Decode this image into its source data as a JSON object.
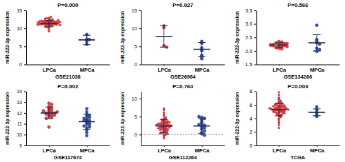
{
  "chart_data": [
    {
      "type": "scatter",
      "title": "P=0.000",
      "x_label": "GSE21036",
      "y_label": "miR-222-3p expression",
      "ylim": [
        0,
        15
      ],
      "yticks": [
        0,
        5,
        10,
        15
      ],
      "series": [
        {
          "name": "LPCa",
          "color": "#e8383d",
          "marker": "circle",
          "mean": 11.3,
          "sd": 0.9,
          "values": [
            11.2,
            11.5,
            11.8,
            12.1,
            10.9,
            11.4,
            11.7,
            12.3,
            12.6,
            11.0,
            10.6,
            11.3,
            11.9,
            12.0,
            11.6,
            11.1,
            10.8,
            12.4,
            11.5,
            11.2,
            11.8,
            12.2,
            10.4,
            11.6,
            11.3,
            11.9,
            12.8,
            11.0,
            11.4,
            11.7,
            10.2,
            12.5,
            11.5,
            11.1,
            11.8,
            12.0,
            11.3,
            10.7,
            11.6,
            12.9,
            9.8,
            11.2,
            11.9,
            12.1,
            11.4,
            11.7,
            10.9,
            13.2,
            11.5,
            11.0,
            12.3,
            11.6,
            9.2,
            11.3,
            11.8,
            12.0,
            11.1,
            10.5,
            11.4,
            12.7
          ]
        },
        {
          "name": "MPCa",
          "color": "#3a50a8",
          "marker": "circle",
          "mean": 6.8,
          "sd": 1.3,
          "values": [
            5.6,
            6.4,
            7.0,
            8.3,
            6.9
          ]
        }
      ]
    },
    {
      "type": "scatter",
      "title": "P=0.027",
      "x_label": "GSE26964",
      "y_label": "miR-222-3p expression",
      "ylim": [
        0,
        15
      ],
      "yticks": [
        0,
        5,
        10,
        15
      ],
      "series": [
        {
          "name": "LPCa",
          "color": "#e8383d",
          "marker": "circle",
          "mean": 7.8,
          "sd": 3.0,
          "values": [
            10.7,
            10.2,
            5.2,
            4.8
          ]
        },
        {
          "name": "MPCa",
          "color": "#3a50a8",
          "marker": "circle",
          "mean": 4.2,
          "sd": 1.9,
          "values": [
            6.4,
            5.9,
            4.6,
            3.8,
            2.6,
            2.1,
            1.6
          ]
        }
      ]
    },
    {
      "type": "scatter",
      "title": "P=0.566",
      "x_label": "GSE134266",
      "y_label": "miR-222-3p expression",
      "ylim": [
        1.5,
        3.5
      ],
      "yticks": [
        {
          "value": 1.5,
          "label": "1.5"
        },
        {
          "value": 2,
          "label": "2.0"
        },
        {
          "value": 2.5,
          "label": "2.5"
        },
        {
          "value": 3,
          "label": "3.0"
        },
        {
          "value": 3.5,
          "label": "3.5"
        }
      ],
      "series": [
        {
          "name": "LPCa",
          "color": "#e8383d",
          "marker": "circle",
          "mean": 2.22,
          "sd": 0.08,
          "values": [
            2.18,
            2.22,
            2.25,
            2.15,
            2.3,
            2.12,
            2.2,
            2.28,
            2.35,
            2.1,
            2.24,
            2.19,
            2.27,
            2.16,
            2.21,
            2.33,
            2.08,
            2.23
          ]
        },
        {
          "name": "MPCa",
          "color": "#3a50a8",
          "marker": "circle",
          "mean": 2.3,
          "sd": 0.3,
          "values": [
            2.95,
            2.42,
            2.3,
            2.25,
            2.1,
            2.05,
            2.35,
            1.98
          ]
        }
      ]
    },
    {
      "type": "scatter",
      "title": "P=0.002",
      "x_label": "GSE117674",
      "y_label": "miR-222-3p expression",
      "ylim": [
        9,
        14
      ],
      "yticks": [
        9,
        10,
        11,
        12,
        13,
        14
      ],
      "series": [
        {
          "name": "LPCa",
          "color": "#e8383d",
          "marker": "circle",
          "mean": 12.0,
          "sd": 0.55,
          "values": [
            12.9,
            12.6,
            12.4,
            12.3,
            12.2,
            12.1,
            12.0,
            12.0,
            11.9,
            11.8,
            11.7,
            11.6,
            12.5,
            12.2,
            11.9,
            11.5,
            10.7,
            12.8,
            12.1,
            11.8
          ]
        },
        {
          "name": "MPCa",
          "color": "#3a50a8",
          "marker": "circle",
          "mean": 11.2,
          "sd": 0.7,
          "values": [
            12.4,
            12.1,
            11.9,
            11.7,
            11.6,
            11.5,
            11.4,
            11.3,
            11.2,
            11.1,
            11.0,
            10.9,
            10.8,
            10.6,
            10.4,
            10.2,
            9.9,
            11.8,
            11.3,
            10.7
          ]
        }
      ]
    },
    {
      "type": "scatter",
      "title": "P=0.764",
      "x_label": "GSE112264",
      "y_label": "miR-222-3p expression",
      "ylim": [
        -3,
        12
      ],
      "yticks": [
        0,
        5,
        10
      ],
      "reference_line": 0,
      "series": [
        {
          "name": "LPCa",
          "color": "#e8383d",
          "marker": "circle",
          "mean": 2.4,
          "sd": 1.8,
          "values": [
            0.1,
            0.3,
            0.5,
            0.8,
            1.0,
            1.2,
            1.4,
            1.5,
            1.7,
            1.8,
            2.0,
            2.1,
            2.2,
            2.3,
            2.4,
            2.5,
            2.6,
            2.7,
            2.8,
            2.9,
            3.0,
            3.1,
            3.2,
            3.3,
            3.5,
            3.6,
            3.8,
            4.0,
            4.2,
            4.5,
            4.8,
            5.2,
            5.6,
            6.1,
            6.8,
            -0.2,
            -0.5,
            0.2,
            0.6,
            1.1,
            1.6,
            1.9,
            2.2,
            2.4,
            2.6,
            2.9,
            3.1,
            3.4,
            3.7,
            4.1,
            0.0,
            0.4,
            1.3,
            2.0,
            2.5,
            3.0,
            1.8,
            2.7,
            -1.0,
            7.2
          ]
        },
        {
          "name": "MPCa",
          "color": "#3a50a8",
          "marker": "circle",
          "mean": 2.4,
          "sd": 2.0,
          "values": [
            4.8,
            4.5,
            4.2,
            3.6,
            3.0,
            2.6,
            2.2,
            1.9,
            1.5,
            1.0,
            0.6,
            0.2,
            -0.2,
            2.8,
            5.0
          ]
        }
      ]
    },
    {
      "type": "scatter",
      "title": "P=0.003",
      "x_label": "TCGA",
      "y_label": "miR-222-3p expression",
      "ylim": [
        0,
        8
      ],
      "yticks": [
        0,
        2,
        4,
        6,
        8
      ],
      "series": [
        {
          "name": "LPCa",
          "color": "#e8383d",
          "marker": "circle",
          "mean": 5.3,
          "sd": 0.9,
          "values": [
            5.3,
            5.5,
            5.1,
            5.8,
            4.9,
            5.6,
            6.0,
            5.2,
            4.7,
            5.4,
            5.9,
            6.3,
            5.0,
            4.5,
            5.7,
            6.5,
            5.3,
            4.8,
            6.1,
            5.5,
            4.3,
            5.2,
            6.8,
            5.6,
            4.0,
            5.4,
            6.2,
            5.1,
            7.1,
            3.8,
            5.8,
            5.0,
            4.6,
            6.4,
            5.3,
            3.5,
            5.7,
            7.5,
            4.9,
            5.5,
            6.0,
            4.2,
            5.2,
            6.6,
            3.0,
            5.4,
            4.8,
            7.9,
            5.6,
            5.1,
            2.6,
            6.2,
            5.3,
            4.4,
            5.9,
            6.9,
            5.0,
            5.7,
            4.7,
            6.1,
            5.2,
            5.5,
            3.3,
            5.8
          ]
        },
        {
          "name": "MPCa",
          "color": "#3a50a8",
          "marker": "circle",
          "mean": 4.9,
          "sd": 0.5,
          "values": [
            5.7,
            5.3,
            4.9,
            4.6,
            4.3
          ]
        }
      ]
    }
  ]
}
